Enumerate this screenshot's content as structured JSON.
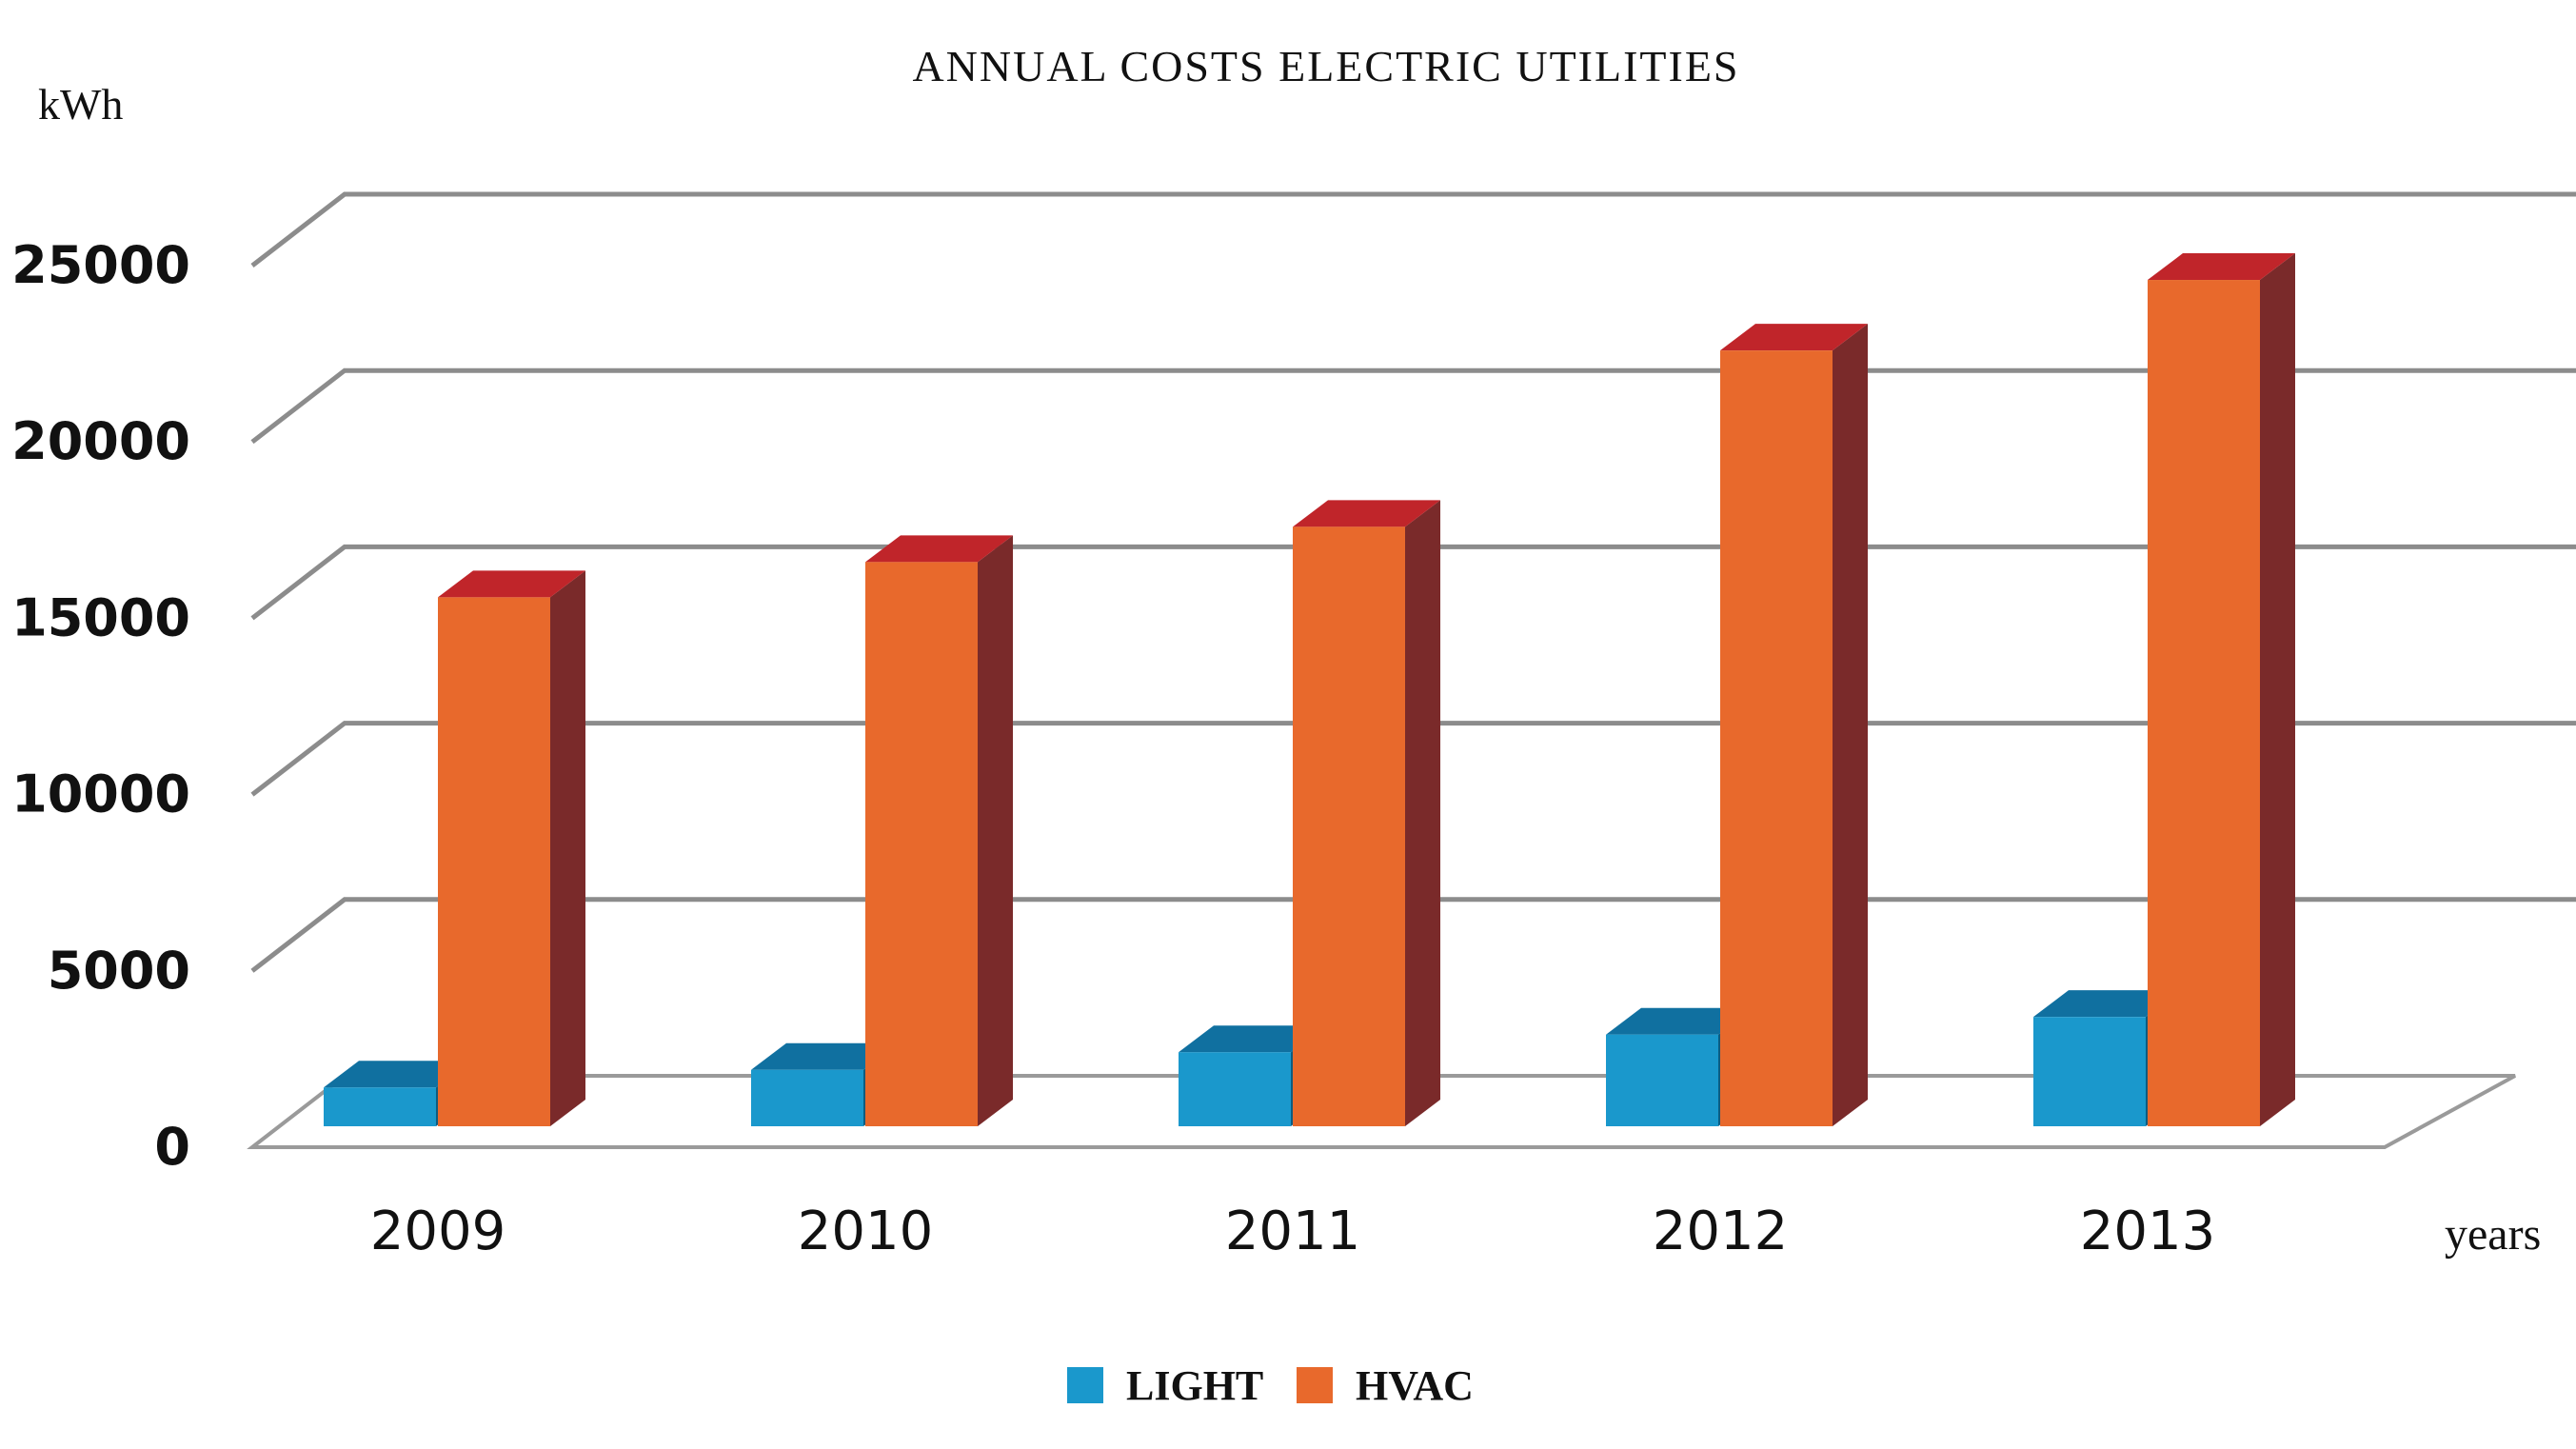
{
  "chart_data": {
    "type": "bar",
    "title": "ANNUAL COSTS ELECTRIC UTILITIES",
    "ylabel": "kWh",
    "xlabel": "years",
    "ylim": [
      0,
      25000
    ],
    "yticks": [
      "0",
      "5000",
      "10000",
      "15000",
      "20000",
      "25000"
    ],
    "categories": [
      "2009",
      "2010",
      "2011",
      "2012",
      "2013"
    ],
    "series": [
      {
        "name": "LIGHT",
        "values": [
          1100,
          1600,
          2100,
          2600,
          3100
        ],
        "color": "#1a98cc",
        "side_color": "#0d5c80",
        "top_color": "#1070a0"
      },
      {
        "name": "HVAC",
        "values": [
          15000,
          16000,
          17000,
          22000,
          24000
        ],
        "color": "#e8692c",
        "side_color": "#7a2a2a",
        "top_color": "#c0252a"
      }
    ],
    "legend": "bottom",
    "grid": true
  }
}
